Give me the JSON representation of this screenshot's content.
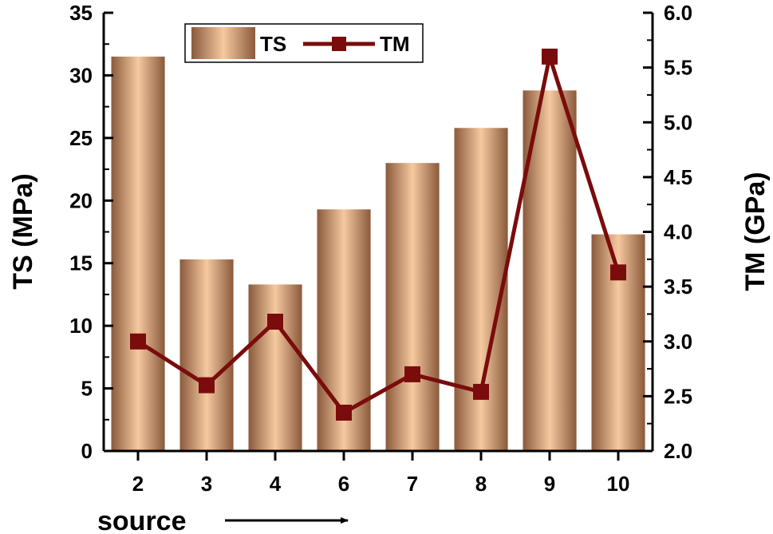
{
  "chart_data": {
    "type": "bar",
    "categories": [
      "2",
      "3",
      "4",
      "6",
      "7",
      "8",
      "9",
      "10"
    ],
    "series": [
      {
        "name": "TS",
        "type": "bar",
        "axis": "left",
        "values": [
          31.5,
          15.3,
          13.3,
          19.3,
          23.0,
          25.8,
          28.8,
          17.3
        ]
      },
      {
        "name": "TM",
        "type": "line",
        "axis": "right",
        "marker": "square",
        "values": [
          3.0,
          2.6,
          3.18,
          2.35,
          2.7,
          2.54,
          5.6,
          3.63
        ]
      }
    ],
    "xlabel": "source",
    "ylabel": "TS (MPa)",
    "y2label": "TM (GPa)",
    "ylim": [
      0,
      35
    ],
    "y2lim": [
      2.0,
      6.0
    ],
    "yticks": [
      "0",
      "5",
      "10",
      "15",
      "20",
      "25",
      "30",
      "35"
    ],
    "y2ticks": [
      "2.0",
      "2.5",
      "3.0",
      "3.5",
      "4.0",
      "4.5",
      "5.0",
      "5.5",
      "6.0"
    ],
    "grid": false,
    "legend": "top-center",
    "colors": {
      "bar_dark": "#8a5a3c",
      "bar_light": "#f6c9a0",
      "line": "#7a0c0c"
    }
  }
}
